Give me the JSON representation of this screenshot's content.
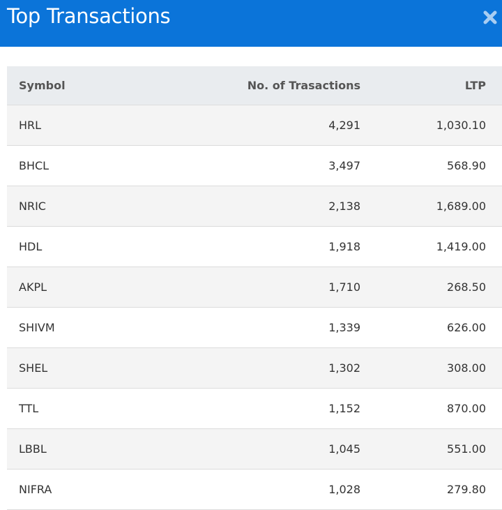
{
  "header": {
    "title": "Top Transactions"
  },
  "table": {
    "columns": [
      "Symbol",
      "No. of Trasactions",
      "LTP"
    ],
    "rows": [
      [
        "HRL",
        "4,291",
        "1,030.10"
      ],
      [
        "BHCL",
        "3,497",
        "568.90"
      ],
      [
        "NRIC",
        "2,138",
        "1,689.00"
      ],
      [
        "HDL",
        "1,918",
        "1,419.00"
      ],
      [
        "AKPL",
        "1,710",
        "268.50"
      ],
      [
        "SHIVM",
        "1,339",
        "626.00"
      ],
      [
        "SHEL",
        "1,302",
        "308.00"
      ],
      [
        "TTL",
        "1,152",
        "870.00"
      ],
      [
        "LBBL",
        "1,045",
        "551.00"
      ],
      [
        "NIFRA",
        "1,028",
        "279.80"
      ]
    ]
  }
}
